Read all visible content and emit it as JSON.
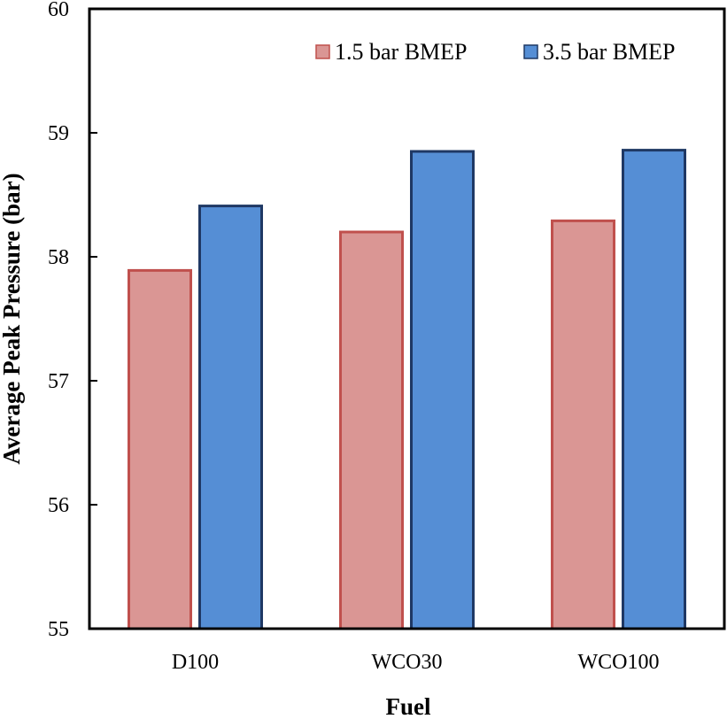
{
  "chart_data": {
    "type": "bar",
    "title": "",
    "xlabel": "Fuel",
    "ylabel": "Average Peak Pressure (bar)",
    "categories": [
      "D100",
      "WCO30",
      "WCO100"
    ],
    "ylim": [
      55,
      60
    ],
    "yticks": [
      "55",
      "56",
      "57",
      "58",
      "59",
      "60"
    ],
    "grid": false,
    "legend_position": "top-right",
    "series": [
      {
        "name": "1.5 bar BMEP",
        "values": [
          57.89,
          58.2,
          58.29
        ],
        "fill": "#DA9694",
        "stroke": "#C0504D"
      },
      {
        "name": "3.5 bar BMEP",
        "values": [
          58.41,
          58.85,
          58.86
        ],
        "fill": "#558ED5",
        "stroke": "#1F3864"
      }
    ]
  }
}
